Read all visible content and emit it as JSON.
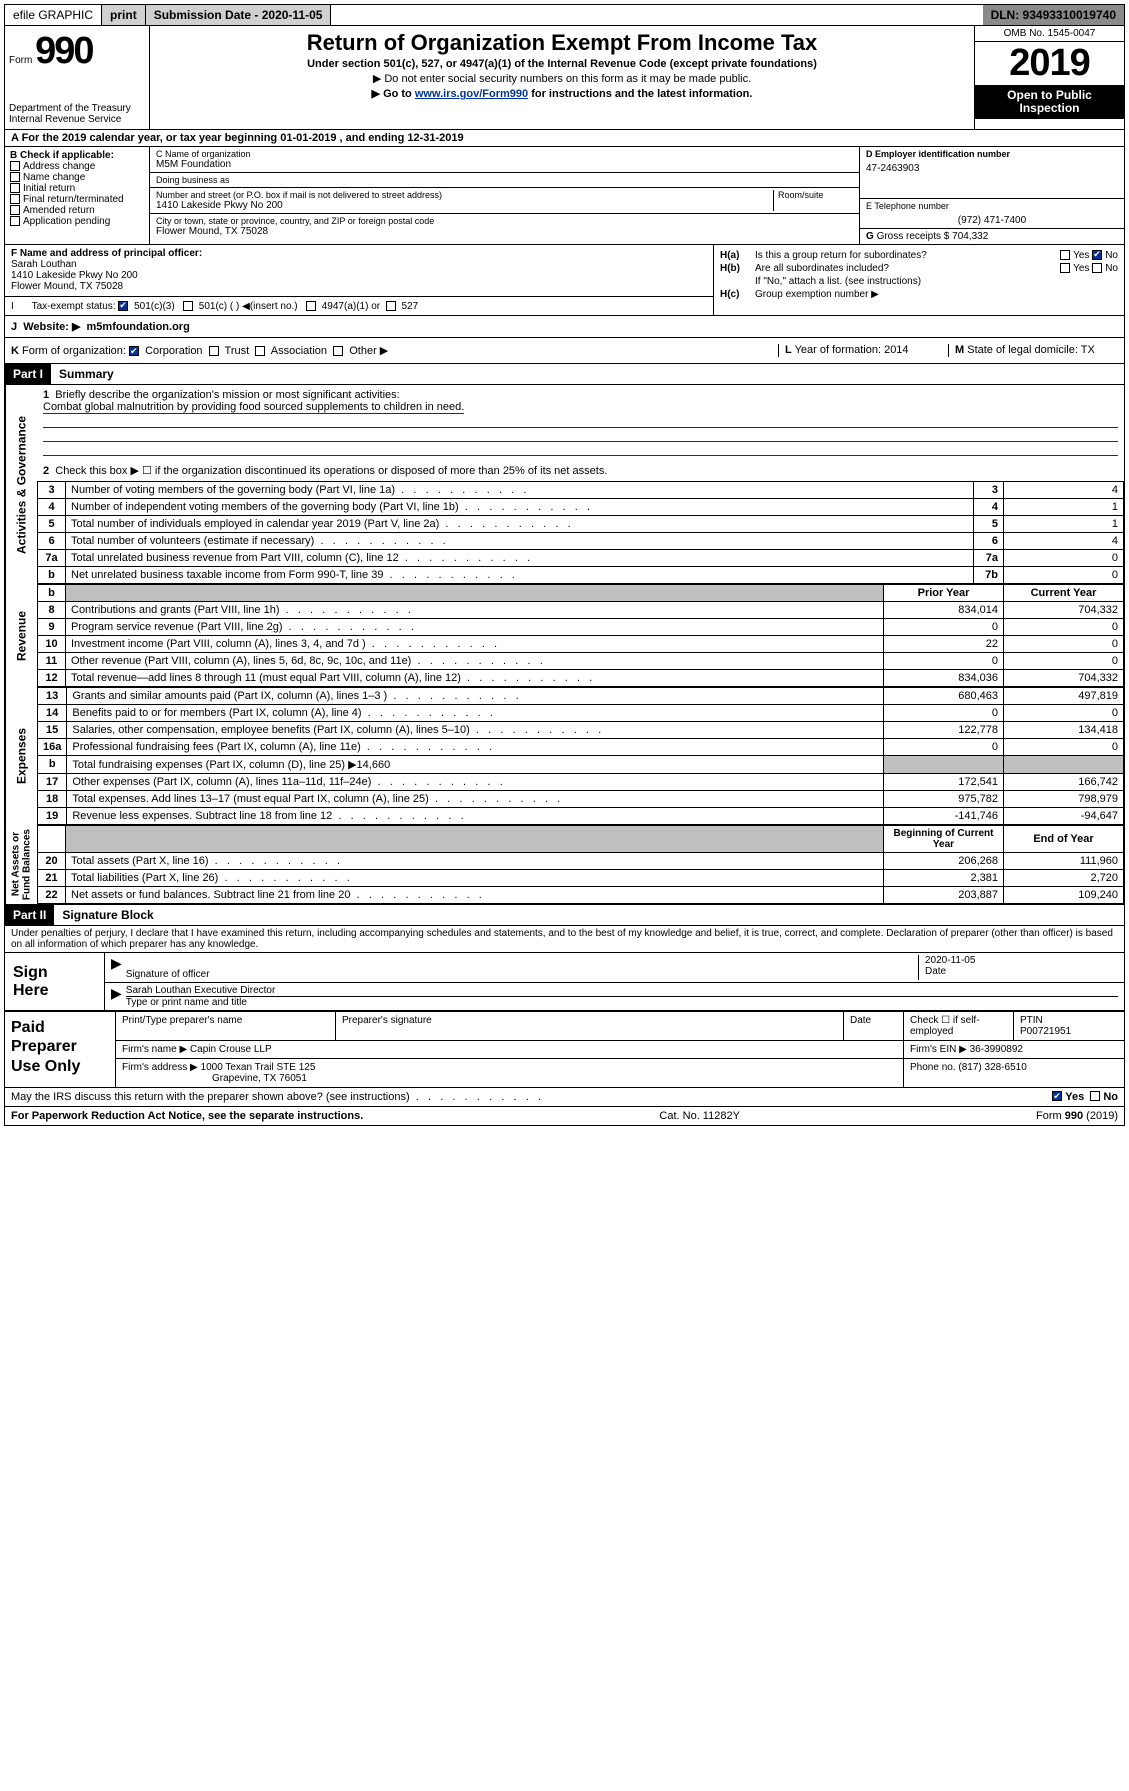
{
  "topbar": {
    "efile": "efile GRAPHIC",
    "print": "print",
    "subdate_label": "Submission Date - 2020-11-05",
    "dln": "DLN: 93493310019740"
  },
  "header": {
    "form_prefix": "Form",
    "form_number": "990",
    "dept": "Department of the Treasury\nInternal Revenue Service",
    "title": "Return of Organization Exempt From Income Tax",
    "subtitle": "Under section 501(c), 527, or 4947(a)(1) of the Internal Revenue Code (except private foundations)",
    "note1": "▶ Do not enter social security numbers on this form as it may be made public.",
    "note2_pre": "▶ Go to ",
    "note2_link": "www.irs.gov/Form990",
    "note2_post": " for instructions and the latest information.",
    "omb": "OMB No. 1545-0047",
    "year": "2019",
    "open": "Open to Public\nInspection"
  },
  "period": {
    "prefix": "A  For the 2019 calendar year, or tax year beginning ",
    "begin": "01-01-2019",
    "mid": " , and ending ",
    "end": "12-31-2019"
  },
  "sectionB": {
    "label": "B Check if applicable:",
    "items": [
      "Address change",
      "Name change",
      "Initial return",
      "Final return/terminated",
      "Amended return",
      "Application pending"
    ]
  },
  "sectionC": {
    "name_label": "C Name of organization",
    "name": "M5M Foundation",
    "dba_label": "Doing business as",
    "dba": "",
    "addr_label": "Number and street (or P.O. box if mail is not delivered to street address)",
    "room_label": "Room/suite",
    "addr": "1410 Lakeside Pkwy No 200",
    "city_label": "City or town, state or province, country, and ZIP or foreign postal code",
    "city": "Flower Mound, TX  75028"
  },
  "sectionD": {
    "label": "D Employer identification number",
    "value": "47-2463903"
  },
  "sectionE": {
    "label": "E Telephone number",
    "value": "(972) 471-7400"
  },
  "sectionG": {
    "label": "G",
    "text": "Gross receipts $ 704,332"
  },
  "sectionF": {
    "label": "F  Name and address of principal officer:",
    "name": "Sarah Louthan",
    "addr1": "1410 Lakeside Pkwy No 200",
    "addr2": "Flower Mound, TX  75028"
  },
  "sectionH": {
    "ha_label": "H(a)",
    "ha_text": "Is this a group return for subordinates?",
    "ha_yes": "Yes",
    "ha_no": "No",
    "hb_label": "H(b)",
    "hb_text": "Are all subordinates included?",
    "hb_note": "If \"No,\" attach a list. (see instructions)",
    "hc_label": "H(c)",
    "hc_text": "Group exemption number ▶"
  },
  "sectionI": {
    "label": "I",
    "text": "Tax-exempt status:",
    "opt1": "501(c)(3)",
    "opt2": "501(c) (  ) ◀(insert no.)",
    "opt3": "4947(a)(1) or",
    "opt4": "527"
  },
  "sectionJ": {
    "label": "J",
    "text": "Website: ▶",
    "value": "m5mfoundation.org"
  },
  "sectionK": {
    "label": "K",
    "text": "Form of organization:",
    "opts": [
      "Corporation",
      "Trust",
      "Association",
      "Other ▶"
    ],
    "l_label": "L",
    "l_text": "Year of formation: 2014",
    "m_label": "M",
    "m_text": "State of legal domicile: TX"
  },
  "part1": {
    "label": "Part I",
    "title": "Summary",
    "side_ag": "Activities & Governance",
    "side_rev": "Revenue",
    "side_exp": "Expenses",
    "side_na": "Net Assets or\nFund Balances",
    "l1": "Briefly describe the organization's mission or most significant activities:",
    "l1_text": "Combat global malnutrition by providing food sourced supplements to children in need.",
    "l2": "Check this box ▶ ☐  if the organization discontinued its operations or disposed of more than 25% of its net assets.",
    "rows_ag": [
      {
        "n": "3",
        "t": "Number of voting members of the governing body (Part VI, line 1a)",
        "r": "3",
        "v": "4"
      },
      {
        "n": "4",
        "t": "Number of independent voting members of the governing body (Part VI, line 1b)",
        "r": "4",
        "v": "1"
      },
      {
        "n": "5",
        "t": "Total number of individuals employed in calendar year 2019 (Part V, line 2a)",
        "r": "5",
        "v": "1"
      },
      {
        "n": "6",
        "t": "Total number of volunteers (estimate if necessary)",
        "r": "6",
        "v": "4"
      },
      {
        "n": "7a",
        "t": "Total unrelated business revenue from Part VIII, column (C), line 12",
        "r": "7a",
        "v": "0"
      },
      {
        "n": "b",
        "t": "Net unrelated business taxable income from Form 990-T, line 39",
        "r": "7b",
        "v": "0"
      }
    ],
    "hdr_prior": "Prior Year",
    "hdr_curr": "Current Year",
    "rows_rev": [
      {
        "n": "8",
        "t": "Contributions and grants (Part VIII, line 1h)",
        "p": "834,014",
        "c": "704,332"
      },
      {
        "n": "9",
        "t": "Program service revenue (Part VIII, line 2g)",
        "p": "0",
        "c": "0"
      },
      {
        "n": "10",
        "t": "Investment income (Part VIII, column (A), lines 3, 4, and 7d )",
        "p": "22",
        "c": "0"
      },
      {
        "n": "11",
        "t": "Other revenue (Part VIII, column (A), lines 5, 6d, 8c, 9c, 10c, and 11e)",
        "p": "0",
        "c": "0"
      },
      {
        "n": "12",
        "t": "Total revenue—add lines 8 through 11 (must equal Part VIII, column (A), line 12)",
        "p": "834,036",
        "c": "704,332"
      }
    ],
    "rows_exp": [
      {
        "n": "13",
        "t": "Grants and similar amounts paid (Part IX, column (A), lines 1–3 )",
        "p": "680,463",
        "c": "497,819"
      },
      {
        "n": "14",
        "t": "Benefits paid to or for members (Part IX, column (A), line 4)",
        "p": "0",
        "c": "0"
      },
      {
        "n": "15",
        "t": "Salaries, other compensation, employee benefits (Part IX, column (A), lines 5–10)",
        "p": "122,778",
        "c": "134,418"
      },
      {
        "n": "16a",
        "t": "Professional fundraising fees (Part IX, column (A), line 11e)",
        "p": "0",
        "c": "0"
      },
      {
        "n": "b",
        "t": "Total fundraising expenses (Part IX, column (D), line 25) ▶14,660",
        "p": "",
        "c": "",
        "shade": true
      },
      {
        "n": "17",
        "t": "Other expenses (Part IX, column (A), lines 11a–11d, 11f–24e)",
        "p": "172,541",
        "c": "166,742"
      },
      {
        "n": "18",
        "t": "Total expenses. Add lines 13–17 (must equal Part IX, column (A), line 25)",
        "p": "975,782",
        "c": "798,979"
      },
      {
        "n": "19",
        "t": "Revenue less expenses. Subtract line 18 from line 12",
        "p": "-141,746",
        "c": "-94,647"
      }
    ],
    "hdr_boy": "Beginning of Current Year",
    "hdr_eoy": "End of Year",
    "rows_na": [
      {
        "n": "20",
        "t": "Total assets (Part X, line 16)",
        "p": "206,268",
        "c": "111,960"
      },
      {
        "n": "21",
        "t": "Total liabilities (Part X, line 26)",
        "p": "2,381",
        "c": "2,720"
      },
      {
        "n": "22",
        "t": "Net assets or fund balances. Subtract line 21 from line 20",
        "p": "203,887",
        "c": "109,240"
      }
    ]
  },
  "part2": {
    "label": "Part II",
    "title": "Signature Block",
    "declaration": "Under penalties of perjury, I declare that I have examined this return, including accompanying schedules and statements, and to the best of my knowledge and belief, it is true, correct, and complete. Declaration of preparer (other than officer) is based on all information of which preparer has any knowledge.",
    "sign_here": "Sign\nHere",
    "sig_officer": "Signature of officer",
    "sig_date": "Date",
    "sig_date_val": "2020-11-05",
    "sig_name": "Sarah Louthan  Executive Director",
    "sig_type": "Type or print name and title",
    "paid": "Paid\nPreparer\nUse Only",
    "prep_name_label": "Print/Type preparer's name",
    "prep_sig_label": "Preparer's signature",
    "prep_date_label": "Date",
    "prep_check": "Check ☐ if self-employed",
    "prep_ptin_label": "PTIN",
    "prep_ptin": "P00721951",
    "firm_name_label": "Firm's name    ▶",
    "firm_name": "Capin Crouse LLP",
    "firm_ein_label": "Firm's EIN ▶",
    "firm_ein": "36-3990892",
    "firm_addr_label": "Firm's address ▶",
    "firm_addr1": "1000 Texan Trail STE 125",
    "firm_addr2": "Grapevine, TX  76051",
    "firm_phone_label": "Phone no.",
    "firm_phone": "(817) 328-6510",
    "discuss": "May the IRS discuss this return with the preparer shown above? (see instructions)",
    "discuss_yes": "Yes",
    "discuss_no": "No"
  },
  "footer": {
    "pra": "For Paperwork Reduction Act Notice, see the separate instructions.",
    "cat": "Cat. No. 11282Y",
    "form": "Form 990 (2019)"
  }
}
